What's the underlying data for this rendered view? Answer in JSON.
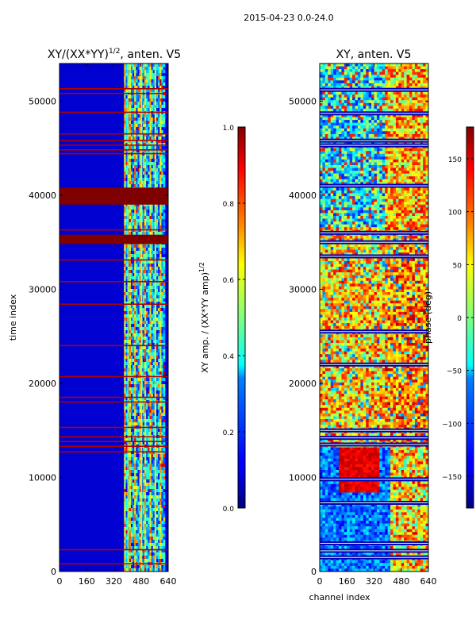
{
  "figure": {
    "suptitle": "2015-04-23 0.0-24.0"
  },
  "chart_data": [
    {
      "type": "heatmap",
      "title_prefix": "XY/(XX*YY)",
      "title_exponent": "1/2",
      "title_suffix": ", anten. V5",
      "xlabel": "",
      "ylabel": "time index",
      "xlim": [
        0,
        640
      ],
      "ylim": [
        0,
        54000
      ],
      "xticks": [
        0,
        160,
        320,
        480,
        640
      ],
      "yticks": [
        0,
        10000,
        20000,
        30000,
        40000,
        50000
      ],
      "xtick_labels": [
        "0",
        "160",
        "320",
        "480",
        "640"
      ],
      "ytick_labels": [
        "0",
        "10000",
        "20000",
        "30000",
        "40000",
        "50000"
      ],
      "colormap": "jet",
      "background_value": 0.08,
      "saturated_bands": [
        [
          39000,
          40800
        ],
        [
          34800,
          35800
        ]
      ],
      "thin_bands": [
        51300,
        50800,
        48800,
        46500,
        45800,
        45300,
        44800,
        44400,
        36300,
        33100,
        30800,
        28400,
        24000,
        20700,
        18500,
        18000,
        15300,
        14300,
        13800,
        13300,
        12700,
        2300,
        800
      ],
      "active_channels": [
        [
          380,
          620
        ]
      ],
      "colorbar": {
        "label_prefix": "XY amp. / (XX*YY amp)",
        "label_exponent": "1/2",
        "range": [
          0.0,
          1.0
        ],
        "ticks": [
          0.0,
          0.2,
          0.4,
          0.6,
          0.8,
          1.0
        ],
        "tick_labels": [
          "0.0",
          "0.2",
          "0.4",
          "0.6",
          "0.8",
          "1.0"
        ]
      }
    },
    {
      "type": "heatmap",
      "title": "XY, anten. V5",
      "xlabel": "channel index",
      "ylabel": "",
      "xlim": [
        0,
        640
      ],
      "ylim": [
        0,
        54000
      ],
      "xticks": [
        0,
        160,
        320,
        480,
        640
      ],
      "yticks": [
        0,
        10000,
        20000,
        30000,
        40000,
        50000
      ],
      "xtick_labels": [
        "0",
        "160",
        "320",
        "480",
        "640"
      ],
      "ytick_labels": [
        "0",
        "10000",
        "20000",
        "30000",
        "40000",
        "50000"
      ],
      "colormap": "jet",
      "background_value": -170,
      "gap_bands": [
        51200,
        48700,
        45800,
        45300,
        41000,
        36000,
        35000,
        33500,
        25500,
        22000,
        15000,
        14200,
        13500,
        9800,
        7300,
        3000,
        2200,
        1500
      ],
      "active_channels": [
        [
          0,
          640
        ]
      ],
      "colorbar": {
        "label": "phase (deg)",
        "range": [
          -180,
          180
        ],
        "ticks": [
          -150,
          -100,
          -50,
          0,
          50,
          100,
          150
        ],
        "tick_labels": [
          "−150",
          "−100",
          "−50",
          "0",
          "50",
          "100",
          "150"
        ]
      }
    }
  ]
}
